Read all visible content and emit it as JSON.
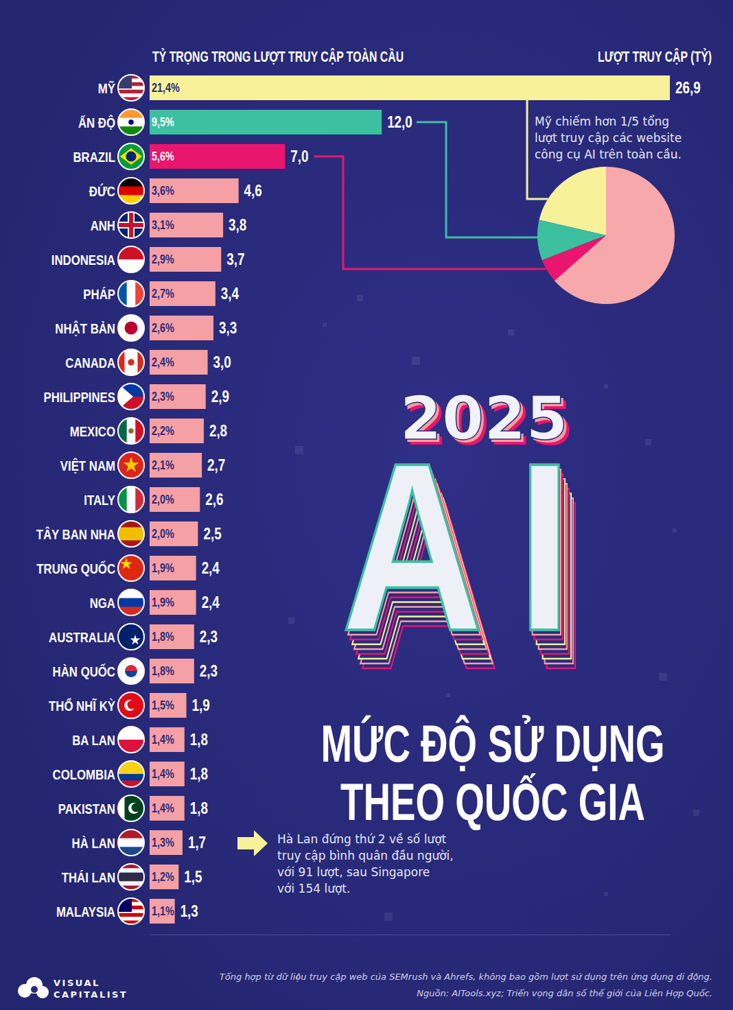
{
  "chart_data": [
    {
      "type": "bar",
      "title": [
        "2025",
        "AI",
        "MỨC ĐỘ SỬ DỤNG",
        "THEO QUỐC GIA"
      ],
      "categories": [
        "MỸ",
        "ẤN ĐỘ",
        "BRAZIL",
        "ĐỨC",
        "ANH",
        "INDONESIA",
        "PHÁP",
        "NHẬT BẢN",
        "CANADA",
        "PHILIPPINES",
        "MEXICO",
        "VIỆT NAM",
        "ITALY",
        "TÂY BAN NHA",
        "TRUNG QUỐC",
        "NGA",
        "AUSTRALIA",
        "HÀN QUỐC",
        "THỔ NHĨ KỲ",
        "BA LAN",
        "COLOMBIA",
        "PAKISTAN",
        "HÀ LAN",
        "THÁI LAN",
        "MALAYSIA"
      ],
      "series": [
        {
          "name": "LƯỢT TRUY CẬP (TỶ)",
          "values": [
            26.9,
            12.0,
            7.0,
            4.6,
            3.8,
            3.7,
            3.4,
            3.3,
            3.0,
            2.9,
            2.8,
            2.7,
            2.6,
            2.5,
            2.4,
            2.4,
            2.3,
            2.3,
            1.9,
            1.8,
            1.8,
            1.8,
            1.7,
            1.5,
            1.3
          ],
          "value_labels": [
            "26,9",
            "12,0",
            "7,0",
            "4,6",
            "3,8",
            "3,7",
            "3,4",
            "3,3",
            "3,0",
            "2,9",
            "2,8",
            "2,7",
            "2,6",
            "2,5",
            "2,4",
            "2,4",
            "2,3",
            "2,3",
            "1,9",
            "1,8",
            "1,8",
            "1,8",
            "1,7",
            "1,5",
            "1,3"
          ]
        },
        {
          "name": "TỶ TRỌNG TRONG LƯỢT TRUY CẬP TOÀN CẦU",
          "type": "text",
          "values": [
            21.4,
            9.5,
            5.6,
            3.6,
            3.1,
            2.9,
            2.7,
            2.6,
            2.4,
            2.3,
            2.2,
            2.1,
            2.0,
            2.0,
            1.9,
            1.9,
            1.8,
            1.8,
            1.5,
            1.4,
            1.4,
            1.4,
            1.3,
            1.2,
            1.1
          ],
          "value_labels": [
            "21,4%",
            "9,5%",
            "5,6%",
            "3,6%",
            "3,1%",
            "2,9%",
            "2,7%",
            "2,6%",
            "2,4%",
            "2,3%",
            "2,2%",
            "2,1%",
            "2,0%",
            "2,0%",
            "1,9%",
            "1,9%",
            "1,8%",
            "1,8%",
            "1,5%",
            "1,4%",
            "1,4%",
            "1,4%",
            "1,3%",
            "1,2%",
            "1,1%"
          ]
        }
      ],
      "colors": [
        "#f7f19a",
        "#3cc0a0",
        "#e8166e",
        "#f5a0a4",
        "#f5a0a4",
        "#f5a0a4",
        "#f5a0a4",
        "#f5a0a4",
        "#f5a0a4",
        "#f5a0a4",
        "#f5a0a4",
        "#f5a0a4",
        "#f5a0a4",
        "#f5a0a4",
        "#f5a0a4",
        "#f5a0a4",
        "#f5a0a4",
        "#f5a0a4",
        "#f5a0a4",
        "#f5a0a4",
        "#f5a0a4",
        "#f5a0a4",
        "#f5a0a4",
        "#f5a0a4",
        "#f5a0a4"
      ],
      "xlim": [
        0,
        26.9
      ],
      "xticks": [],
      "orientation": "horizontal",
      "data_labels": true,
      "tick_labels": "y",
      "grid": false,
      "annotations": [
        {
          "text": [
            "Mỹ chiếm hơn 1/5 tổng",
            "lượt truy cập các website",
            "công cụ AI trên toàn cầu."
          ]
        },
        {
          "text": [
            "Hà Lan đứng thứ 2 về số lượt",
            "truy cập bình quân đầu người,",
            "với 91 lượt, sau Singapore",
            "với 154 lượt."
          ]
        }
      ],
      "notes": [
        "Tổng hợp từ dữ liệu truy cập web của SEMrush và Ahrefs, không bao gồm lượt sử dụng trên ứng dụng di động.",
        "Nguồn: AITools.xyz; Triển vọng dân số thế giới của Liên Hợp Quốc."
      ],
      "credit": [
        "VISUAL",
        "CAPITALIST"
      ]
    },
    {
      "type": "pie",
      "values": [
        21.4,
        9.5,
        5.6,
        63.5
      ],
      "colors": [
        "#f7f19a",
        "#3cc0a0",
        "#e8166e",
        "#f7a8ab"
      ],
      "data_labels": false
    }
  ]
}
